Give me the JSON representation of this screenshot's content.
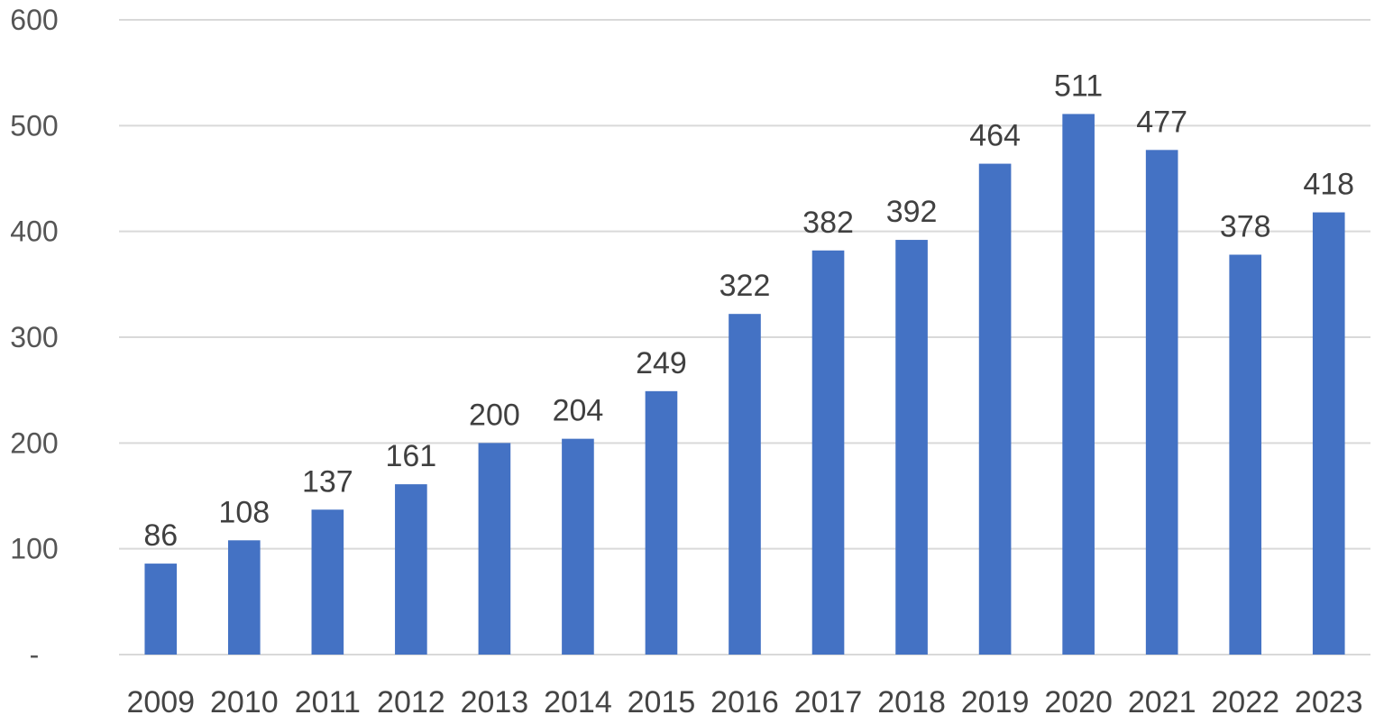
{
  "chart_data": {
    "type": "bar",
    "title": "",
    "xlabel": "",
    "ylabel": "",
    "categories": [
      "2009",
      "2010",
      "2011",
      "2012",
      "2013",
      "2014",
      "2015",
      "2016",
      "2017",
      "2018",
      "2019",
      "2020",
      "2021",
      "2022",
      "2023"
    ],
    "values": [
      86,
      108,
      137,
      161,
      200,
      204,
      249,
      322,
      382,
      392,
      464,
      511,
      477,
      378,
      418
    ],
    "ylim": [
      0,
      600
    ],
    "yticks": [
      0,
      100,
      200,
      300,
      400,
      500,
      600
    ],
    "ytick_labels": [
      "-",
      "100",
      "200",
      "300",
      "400",
      "500",
      "600"
    ],
    "grid": true,
    "legend": "none",
    "bar_color": "#4472C4",
    "data_labels": true
  }
}
